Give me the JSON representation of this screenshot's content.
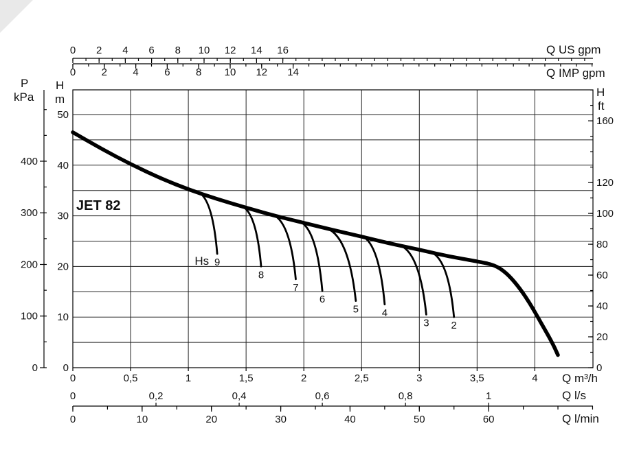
{
  "chart_data": {
    "type": "line",
    "title": "JET 82",
    "x_axes": [
      {
        "id": "qm3h",
        "label": "Q m³/h",
        "unit_factor": 1,
        "ticks": [
          0,
          0.5,
          1,
          1.5,
          2,
          2.5,
          3,
          3.5,
          4
        ],
        "tick_labels": [
          "0",
          "0,5",
          "1",
          "1,5",
          "2",
          "2,5",
          "3",
          "3,5",
          "4"
        ],
        "position": "bottom"
      },
      {
        "id": "qls",
        "label": "Q l/s",
        "ticks": [
          0,
          0.2,
          0.4,
          0.6,
          0.8,
          1
        ],
        "tick_labels": [
          "0",
          "0,2",
          "0,4",
          "0,6",
          "0,8",
          "1"
        ],
        "position": "bottom"
      },
      {
        "id": "qlmin",
        "label": "Q l/min",
        "ticks": [
          0,
          10,
          20,
          30,
          40,
          50,
          60
        ],
        "tick_labels": [
          "0",
          "10",
          "20",
          "30",
          "40",
          "50",
          "60"
        ],
        "position": "bottom"
      },
      {
        "id": "qusgpm",
        "label": "Q US gpm",
        "ticks": [
          0,
          2,
          4,
          6,
          8,
          10,
          12,
          14,
          16
        ],
        "tick_labels": [
          "0",
          "2",
          "4",
          "6",
          "8",
          "10",
          "12",
          "14",
          "16"
        ],
        "position": "top"
      },
      {
        "id": "qimpgpm",
        "label": "Q IMP gpm",
        "ticks": [
          0,
          2,
          4,
          6,
          8,
          10,
          12,
          14
        ],
        "tick_labels": [
          "0",
          "2",
          "4",
          "6",
          "8",
          "10",
          "12",
          "14"
        ],
        "position": "top"
      }
    ],
    "y_axes": [
      {
        "id": "p",
        "label": "P",
        "unit_label": "kPa",
        "ticks": [
          0,
          100,
          200,
          300,
          400
        ],
        "tick_labels": [
          "0",
          "100",
          "200",
          "300",
          "400"
        ],
        "position": "left-outer"
      },
      {
        "id": "hm",
        "label": "H",
        "unit_label": "m",
        "ticks": [
          0,
          10,
          20,
          30,
          40,
          50
        ],
        "tick_labels": [
          "0",
          "10",
          "20",
          "30",
          "40",
          "50"
        ],
        "position": "left-inner"
      },
      {
        "id": "hft",
        "label": "H",
        "unit_label": "ft",
        "ticks": [
          0,
          20,
          40,
          60,
          80,
          100,
          120,
          160
        ],
        "tick_labels": [
          "0",
          "20",
          "40",
          "60",
          "80",
          "100",
          "120",
          "160"
        ],
        "position": "right"
      }
    ],
    "xlim": [
      0,
      4.25
    ],
    "ylim": [
      0,
      55
    ],
    "grid": true,
    "main_curve": {
      "x_unit": "m³/h",
      "y_unit": "m",
      "points": [
        [
          0,
          46.5
        ],
        [
          0.25,
          43.2
        ],
        [
          0.5,
          40.2
        ],
        [
          0.75,
          37.5
        ],
        [
          1,
          35.2
        ],
        [
          1.25,
          33.3
        ],
        [
          1.5,
          31.6
        ],
        [
          1.75,
          30.0
        ],
        [
          2,
          28.6
        ],
        [
          2.25,
          27.2
        ],
        [
          2.5,
          25.9
        ],
        [
          2.75,
          24.5
        ],
        [
          3,
          23.3
        ],
        [
          3.25,
          22.0
        ],
        [
          3.5,
          21.0
        ],
        [
          3.65,
          20.3
        ],
        [
          3.75,
          18.8
        ],
        [
          3.85,
          16.3
        ],
        [
          3.95,
          13.0
        ],
        [
          4.05,
          9.0
        ],
        [
          4.15,
          5.0
        ],
        [
          4.2,
          2.5
        ]
      ]
    },
    "suction_curves": [
      {
        "label": "9",
        "start": [
          1.1,
          34.5
        ],
        "end": [
          1.25,
          22.5
        ]
      },
      {
        "label": "8",
        "start": [
          1.48,
          31.7
        ],
        "end": [
          1.63,
          20.0
        ]
      },
      {
        "label": "7",
        "start": [
          1.75,
          30.0
        ],
        "end": [
          1.93,
          17.5
        ]
      },
      {
        "label": "6",
        "start": [
          1.98,
          28.7
        ],
        "end": [
          2.16,
          15.2
        ]
      },
      {
        "label": "5",
        "start": [
          2.22,
          27.3
        ],
        "end": [
          2.45,
          13.2
        ]
      },
      {
        "label": "4",
        "start": [
          2.52,
          25.8
        ],
        "end": [
          2.7,
          12.5
        ]
      },
      {
        "label": "3",
        "start": [
          2.85,
          24.0
        ],
        "end": [
          3.06,
          10.5
        ]
      },
      {
        "label": "2",
        "start": [
          3.12,
          22.6
        ],
        "end": [
          3.3,
          10.0
        ]
      }
    ],
    "suction_prefix": "Hs"
  }
}
